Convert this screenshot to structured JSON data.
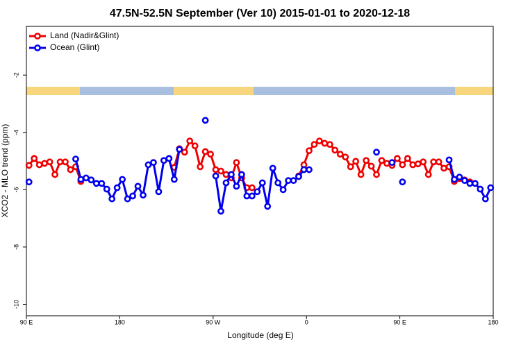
{
  "chart_data": {
    "type": "line",
    "title": "47.5N-52.5N September (Ver 10)   2015-01-01 to 2020-12-18",
    "x_label": "Longitude (deg E)",
    "y_label": "XCO2 - MLO trend (ppm)",
    "x": [
      92.5,
      97.5,
      102.5,
      107.5,
      112.5,
      117.5,
      122.5,
      127.5,
      132.5,
      137.5,
      142.5,
      147.5,
      152.5,
      157.5,
      162.5,
      167.5,
      172.5,
      177.5,
      182.5,
      187.5,
      192.5,
      197.5,
      202.5,
      207.5,
      212.5,
      217.5,
      222.5,
      227.5,
      232.5,
      237.5,
      242.5,
      247.5,
      252.5,
      257.5,
      262.5,
      267.5,
      272.5,
      277.5,
      282.5,
      287.5,
      292.5,
      297.5,
      302.5,
      307.5,
      312.5,
      317.5,
      322.5,
      327.5,
      332.5,
      337.5,
      342.5,
      347.5,
      352.5,
      357.5,
      362.5,
      367.5,
      372.5,
      377.5,
      382.5,
      387.5,
      392.5,
      397.5,
      402.5,
      407.5,
      412.5,
      417.5,
      422.5,
      427.5,
      432.5,
      437.5,
      442.5,
      447.5,
      452.5,
      457.5,
      462.5,
      467.5,
      472.5,
      477.5,
      482.5,
      487.5,
      492.5,
      497.5,
      502.5,
      507.5,
      512.5,
      517.5,
      522.5,
      527.5,
      532.5,
      537.5
    ],
    "series": [
      {
        "name": "Land (Nadir&Glint)",
        "color": "#ee0000",
        "values": [
          -5.15,
          -4.91,
          -5.13,
          -5.08,
          -5.03,
          -5.47,
          -5.03,
          -5.03,
          -5.3,
          -5.2,
          -5.71,
          null,
          null,
          null,
          null,
          null,
          null,
          null,
          null,
          null,
          null,
          null,
          null,
          null,
          null,
          null,
          null,
          null,
          -5.22,
          -4.57,
          -4.69,
          -4.3,
          -4.47,
          -5.2,
          -4.67,
          -4.76,
          -5.3,
          -5.35,
          -5.47,
          -5.59,
          -5.05,
          -5.59,
          -5.93,
          -5.93,
          null,
          null,
          null,
          null,
          null,
          null,
          null,
          null,
          -5.52,
          -5.13,
          -4.64,
          -4.42,
          -4.3,
          -4.38,
          -4.42,
          -4.62,
          -4.76,
          -4.86,
          -5.2,
          -5.01,
          -5.47,
          -4.98,
          -5.18,
          -5.47,
          -4.98,
          -5.08,
          -5.15,
          -4.91,
          -5.13,
          -4.91,
          -5.13,
          -5.1,
          -5.03,
          -5.47,
          -5.03,
          -5.03,
          -5.25,
          -5.2,
          -5.71,
          -5.61,
          -5.66,
          -5.73,
          null,
          null,
          null,
          null
        ]
      },
      {
        "name": "Ocean (Glint)",
        "color": "#0000ee",
        "values": [
          -5.73,
          null,
          null,
          null,
          null,
          null,
          null,
          null,
          null,
          -4.93,
          -5.64,
          -5.59,
          -5.66,
          -5.78,
          -5.78,
          -5.98,
          -6.32,
          -5.93,
          -5.64,
          -6.32,
          -6.22,
          -5.88,
          -6.19,
          -5.13,
          -5.05,
          -6.07,
          -4.98,
          -4.91,
          -5.64,
          -4.59,
          null,
          null,
          null,
          null,
          -3.58,
          null,
          -5.52,
          -6.75,
          -5.76,
          -5.47,
          -5.88,
          -5.47,
          -6.22,
          -6.22,
          -6.07,
          -5.76,
          -6.58,
          -5.25,
          -5.76,
          -6.0,
          -5.68,
          -5.68,
          -5.54,
          -5.3,
          -5.3,
          null,
          null,
          null,
          null,
          null,
          null,
          null,
          null,
          null,
          null,
          null,
          null,
          -4.69,
          null,
          null,
          -5.05,
          null,
          -5.73,
          null,
          null,
          null,
          null,
          null,
          null,
          null,
          null,
          -4.96,
          -5.64,
          -5.56,
          -5.68,
          -5.78,
          -5.78,
          -5.98,
          -6.32,
          -5.93
        ]
      }
    ],
    "xlim": [
      90,
      540
    ],
    "xticks": [
      {
        "value": 90,
        "label": "90 E"
      },
      180,
      {
        "value": 270,
        "label": "90 W"
      },
      {
        "value": 360,
        "label": "0"
      },
      {
        "value": 450,
        "label": "90 E"
      },
      {
        "value": 540,
        "label": "180"
      }
    ],
    "ylim": [
      -10.4,
      -0.3
    ],
    "yticks": [
      -2,
      -4,
      -6,
      -8,
      -10
    ],
    "legend": "top-left"
  }
}
